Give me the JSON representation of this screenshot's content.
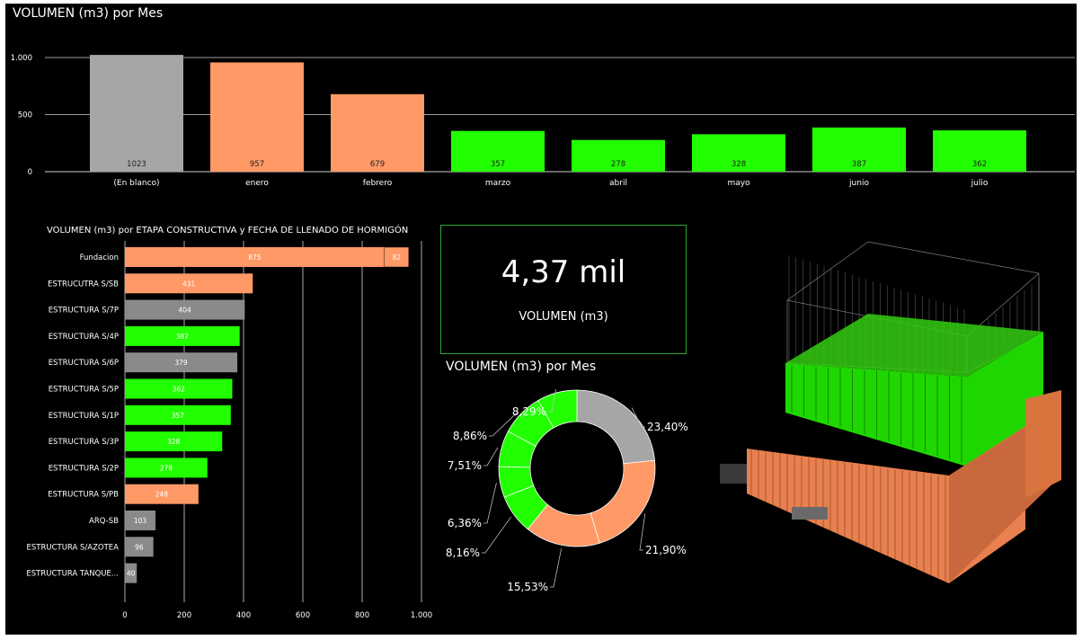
{
  "colors": {
    "orange": "#FF9966",
    "green": "#22FF00",
    "gray": "#A6A6A6",
    "dark_gray": "#8A8A8A",
    "kpi_border": "#2FA82F",
    "background": "#000000"
  },
  "kpi": {
    "value": "4,37 mil",
    "label": "VOLUMEN (m3)"
  },
  "model_image": {
    "icon": "building-3d-model"
  },
  "chart_data": [
    {
      "type": "bar",
      "title": "VOLUMEN (m3) por Mes",
      "categories": [
        "(En blanco)",
        "enero",
        "febrero",
        "marzo",
        "abril",
        "mayo",
        "junio",
        "julio"
      ],
      "values": [
        1023,
        957,
        679,
        357,
        278,
        328,
        387,
        362
      ],
      "value_labels": [
        "1023",
        "957",
        "679",
        "357",
        "278",
        "328",
        "387",
        "362"
      ],
      "bar_colors": [
        "#A6A6A6",
        "#FF9966",
        "#FF9966",
        "#22FF00",
        "#22FF00",
        "#22FF00",
        "#22FF00",
        "#22FF00"
      ],
      "ylim": [
        0,
        1000
      ],
      "yticks": [
        0,
        500,
        1000
      ],
      "ytick_labels": [
        "0",
        "500",
        "1.000"
      ],
      "grid": true
    },
    {
      "type": "bar",
      "orientation": "horizontal",
      "title": "VOLUMEN (m3) por ETAPA CONSTRUCTIVA y FECHA DE LLENADO DE HORMIGÓN",
      "categories": [
        "Fundacion",
        "ESTRUCUTRA S/SB",
        "ESTRUCTURA S/7P",
        "ESTRUCTURA S/4P",
        "ESTRUCTURA S/6P",
        "ESTRUCTURA S/5P",
        "ESTRUCTURA S/1P",
        "ESTRUCTURA S/3P",
        "ESTRUCTURA S/2P",
        "ESTRUCTURA S/PB",
        "ARQ-SB",
        "ESTRUCTURA S/AZOTEA",
        "ESTRUCTURA TANQUE..."
      ],
      "series": [
        {
          "values": [
            875,
            431,
            404,
            387,
            379,
            362,
            357,
            328,
            278,
            248,
            103,
            96,
            40
          ],
          "value_labels": [
            "875",
            "431",
            "404",
            "387",
            "379",
            "362",
            "357",
            "328",
            "278",
            "248",
            "103",
            "96",
            "40"
          ],
          "colors": [
            "#FF9966",
            "#FF9966",
            "#8A8A8A",
            "#22FF00",
            "#8A8A8A",
            "#22FF00",
            "#22FF00",
            "#22FF00",
            "#22FF00",
            "#FF9966",
            "#8A8A8A",
            "#8A8A8A",
            "#8A8A8A"
          ]
        },
        {
          "values": [
            82,
            0,
            0,
            0,
            0,
            0,
            0,
            0,
            0,
            0,
            0,
            0,
            0
          ],
          "value_labels": [
            "82",
            "",
            "",
            "",
            "",
            "",
            "",
            "",
            "",
            "",
            "",
            "",
            ""
          ],
          "colors": [
            "#FF9966",
            "#FF9966",
            "#FF9966",
            "#FF9966",
            "#FF9966",
            "#FF9966",
            "#FF9966",
            "#FF9966",
            "#FF9966",
            "#FF9966",
            "#FF9966",
            "#FF9966",
            "#FF9966"
          ]
        }
      ],
      "xlim": [
        0,
        1000
      ],
      "xticks": [
        0,
        200,
        400,
        600,
        800,
        1000
      ],
      "xtick_labels": [
        "0",
        "200",
        "400",
        "600",
        "800",
        "1.000"
      ],
      "grid": true
    },
    {
      "type": "pie",
      "donut": true,
      "title": "VOLUMEN (m3) por Mes",
      "slices": [
        {
          "label": "23,40%",
          "value": 23.4,
          "color": "#A6A6A6"
        },
        {
          "label": "21,90%",
          "value": 21.9,
          "color": "#FF9966"
        },
        {
          "label": "15,53%",
          "value": 15.53,
          "color": "#FF9966"
        },
        {
          "label": "8,16%",
          "value": 8.16,
          "color": "#22FF00"
        },
        {
          "label": "6,36%",
          "value": 6.36,
          "color": "#22FF00"
        },
        {
          "label": "7,51%",
          "value": 7.51,
          "color": "#22FF00"
        },
        {
          "label": "8,86%",
          "value": 8.86,
          "color": "#22FF00"
        },
        {
          "label": "8,29%",
          "value": 8.29,
          "color": "#22FF00"
        }
      ]
    }
  ]
}
